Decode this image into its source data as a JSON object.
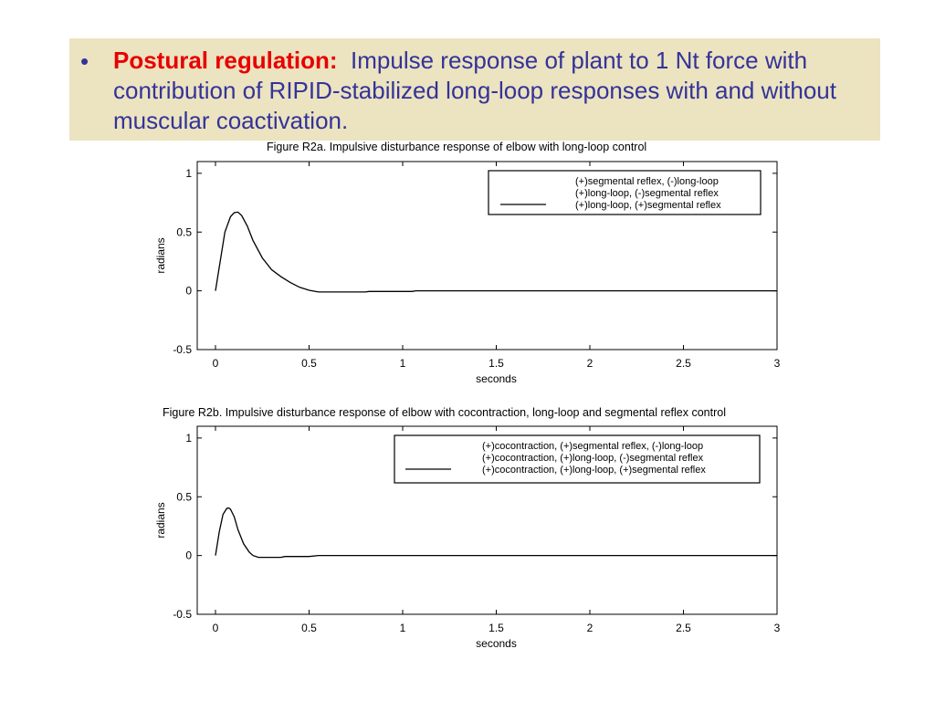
{
  "banner": {
    "bullet": "•",
    "lead": "Postural regulation:",
    "text": "Impulse response of plant to 1 Nt force with contribution of RIPID-stabilized long-loop responses with and without muscular coactivation.",
    "background": "#ece3c0",
    "lead_color": "#e80000",
    "text_color": "#333399"
  },
  "chart_data": [
    {
      "type": "line",
      "title": "Figure R2a.  Impulsive disturbance response of elbow with long-loop control",
      "xlabel": "seconds",
      "ylabel": "radians",
      "xlim": [
        0,
        3
      ],
      "ylim": [
        -0.5,
        1.1
      ],
      "xticks": [
        "0",
        "0.5",
        "1",
        "1.5",
        "2",
        "2.5",
        "3"
      ],
      "yticks": [
        "-0.5",
        "0",
        "0.5",
        "1"
      ],
      "legend_position": "top-right",
      "legend": [
        "(+)segmental reflex, (-)long-loop",
        "(+)long-loop, (-)segmental reflex",
        "(+)long-loop, (+)segmental reflex"
      ],
      "series": [
        {
          "name": "(+)long-loop, (+)segmental reflex",
          "x": [
            0,
            0.02,
            0.05,
            0.08,
            0.1,
            0.12,
            0.14,
            0.17,
            0.2,
            0.25,
            0.3,
            0.35,
            0.4,
            0.45,
            0.5,
            0.55,
            0.6,
            0.7,
            0.8,
            0.82,
            1.0,
            1.05,
            1.07,
            1.5,
            2.0,
            2.5,
            3.0
          ],
          "y": [
            0,
            0.2,
            0.5,
            0.63,
            0.665,
            0.67,
            0.64,
            0.55,
            0.43,
            0.28,
            0.18,
            0.12,
            0.07,
            0.03,
            0.005,
            -0.01,
            -0.01,
            -0.01,
            -0.01,
            -0.005,
            -0.005,
            -0.005,
            0.0,
            0.0,
            0.0,
            0.0,
            0.0
          ]
        }
      ]
    },
    {
      "type": "line",
      "title": "Figure R2b.  Impulsive disturbance response of elbow with cocontraction, long-loop and segmental reflex control",
      "xlabel": "seconds",
      "ylabel": "radians",
      "xlim": [
        0,
        3
      ],
      "ylim": [
        -0.5,
        1.1
      ],
      "xticks": [
        "0",
        "0.5",
        "1",
        "1.5",
        "2",
        "2.5",
        "3"
      ],
      "yticks": [
        "-0.5",
        "0",
        "0.5",
        "1"
      ],
      "legend_position": "top-right",
      "legend": [
        "(+)cocontraction, (+)segmental reflex, (-)long-loop",
        "(+)cocontraction, (+)long-loop, (-)segmental reflex",
        "(+)cocontraction, (+)long-loop, (+)segmental reflex"
      ],
      "series": [
        {
          "name": "(+)cocontraction, (+)long-loop, (+)segmental reflex",
          "x": [
            0,
            0.02,
            0.04,
            0.06,
            0.07,
            0.08,
            0.1,
            0.12,
            0.15,
            0.18,
            0.2,
            0.23,
            0.25,
            0.3,
            0.35,
            0.37,
            0.5,
            0.55,
            3.0
          ],
          "y": [
            0,
            0.2,
            0.35,
            0.4,
            0.405,
            0.395,
            0.33,
            0.22,
            0.1,
            0.03,
            0.0,
            -0.015,
            -0.015,
            -0.015,
            -0.015,
            -0.008,
            -0.008,
            0.0,
            0.0
          ]
        }
      ]
    }
  ]
}
